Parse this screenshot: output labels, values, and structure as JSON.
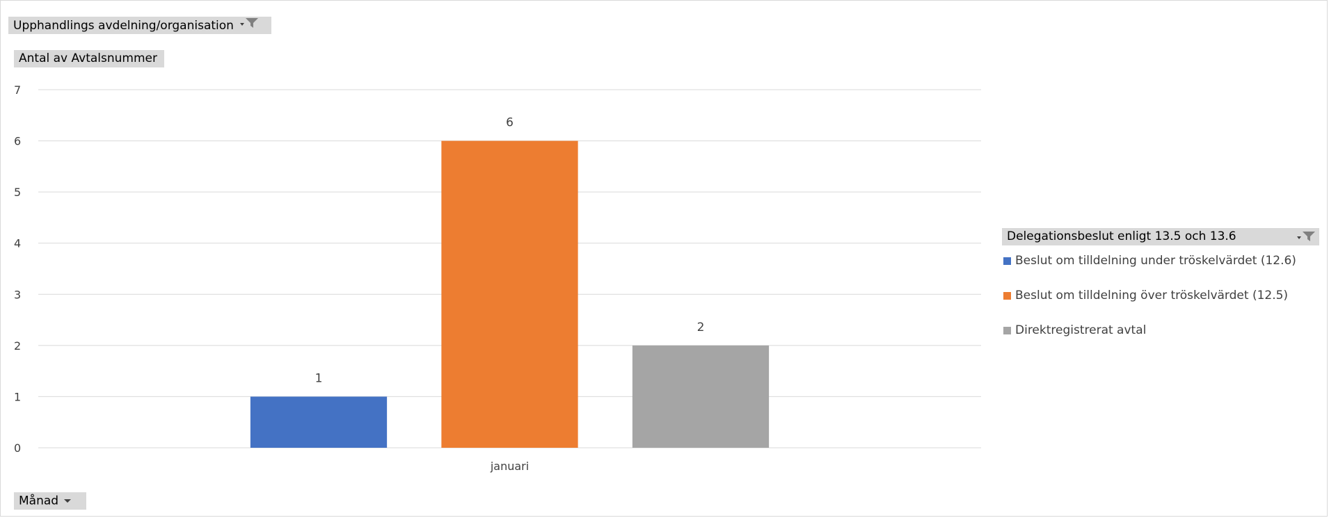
{
  "filters": {
    "report_filter_label": "Upphandlings avdelning/organisation",
    "value_field_label": "Antal av Avtalsnummer",
    "axis_field_label": "Månad",
    "legend_field_label": "Delegationsbeslut enligt 13.5 och 13.6"
  },
  "chart_data": {
    "type": "bar",
    "categories": [
      "januari"
    ],
    "series": [
      {
        "name": "Beslut om tilldelning under tröskelvärdet (12.6)",
        "values": [
          1
        ],
        "color": "#4472c4"
      },
      {
        "name": "Beslut om tilldelning över tröskelvärdet (12.5)",
        "values": [
          6
        ],
        "color": "#ed7d31"
      },
      {
        "name": "Direktregistrerat avtal",
        "values": [
          2
        ],
        "color": "#a5a5a5"
      }
    ],
    "ylim": [
      0,
      7
    ],
    "yticks": [
      "0",
      "1",
      "2",
      "3",
      "4",
      "5",
      "6",
      "7"
    ],
    "grid": true,
    "legend_position": "right"
  }
}
